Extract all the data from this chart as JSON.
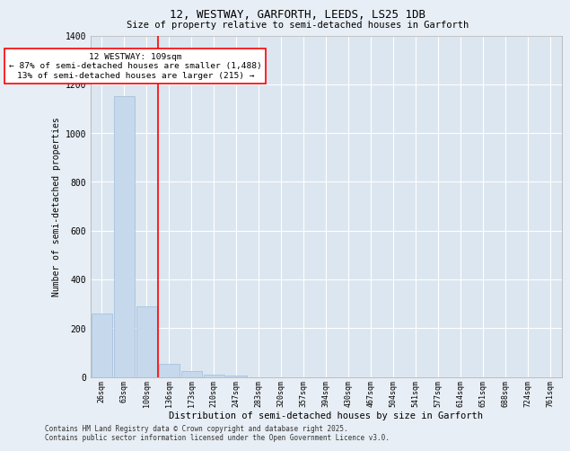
{
  "title_line1": "12, WESTWAY, GARFORTH, LEEDS, LS25 1DB",
  "title_line2": "Size of property relative to semi-detached houses in Garforth",
  "xlabel": "Distribution of semi-detached houses by size in Garforth",
  "ylabel": "Number of semi-detached properties",
  "categories": [
    "26sqm",
    "63sqm",
    "100sqm",
    "136sqm",
    "173sqm",
    "210sqm",
    "247sqm",
    "283sqm",
    "320sqm",
    "357sqm",
    "394sqm",
    "430sqm",
    "467sqm",
    "504sqm",
    "541sqm",
    "577sqm",
    "614sqm",
    "651sqm",
    "688sqm",
    "724sqm",
    "761sqm"
  ],
  "values": [
    258,
    1150,
    290,
    52,
    25,
    10,
    5,
    0,
    0,
    0,
    0,
    0,
    0,
    0,
    0,
    0,
    0,
    0,
    0,
    0,
    0
  ],
  "bar_color": "#c5d8ec",
  "bar_edge_color": "#a0bcd8",
  "red_line_x": 2.5,
  "annotation_text": "12 WESTWAY: 109sqm\n← 87% of semi-detached houses are smaller (1,488)\n13% of semi-detached houses are larger (215) →",
  "ylim": [
    0,
    1400
  ],
  "yticks": [
    0,
    200,
    400,
    600,
    800,
    1000,
    1200,
    1400
  ],
  "footer": "Contains HM Land Registry data © Crown copyright and database right 2025.\nContains public sector information licensed under the Open Government Licence v3.0.",
  "bg_color": "#e8eef5",
  "plot_bg_color": "#dce6f0"
}
